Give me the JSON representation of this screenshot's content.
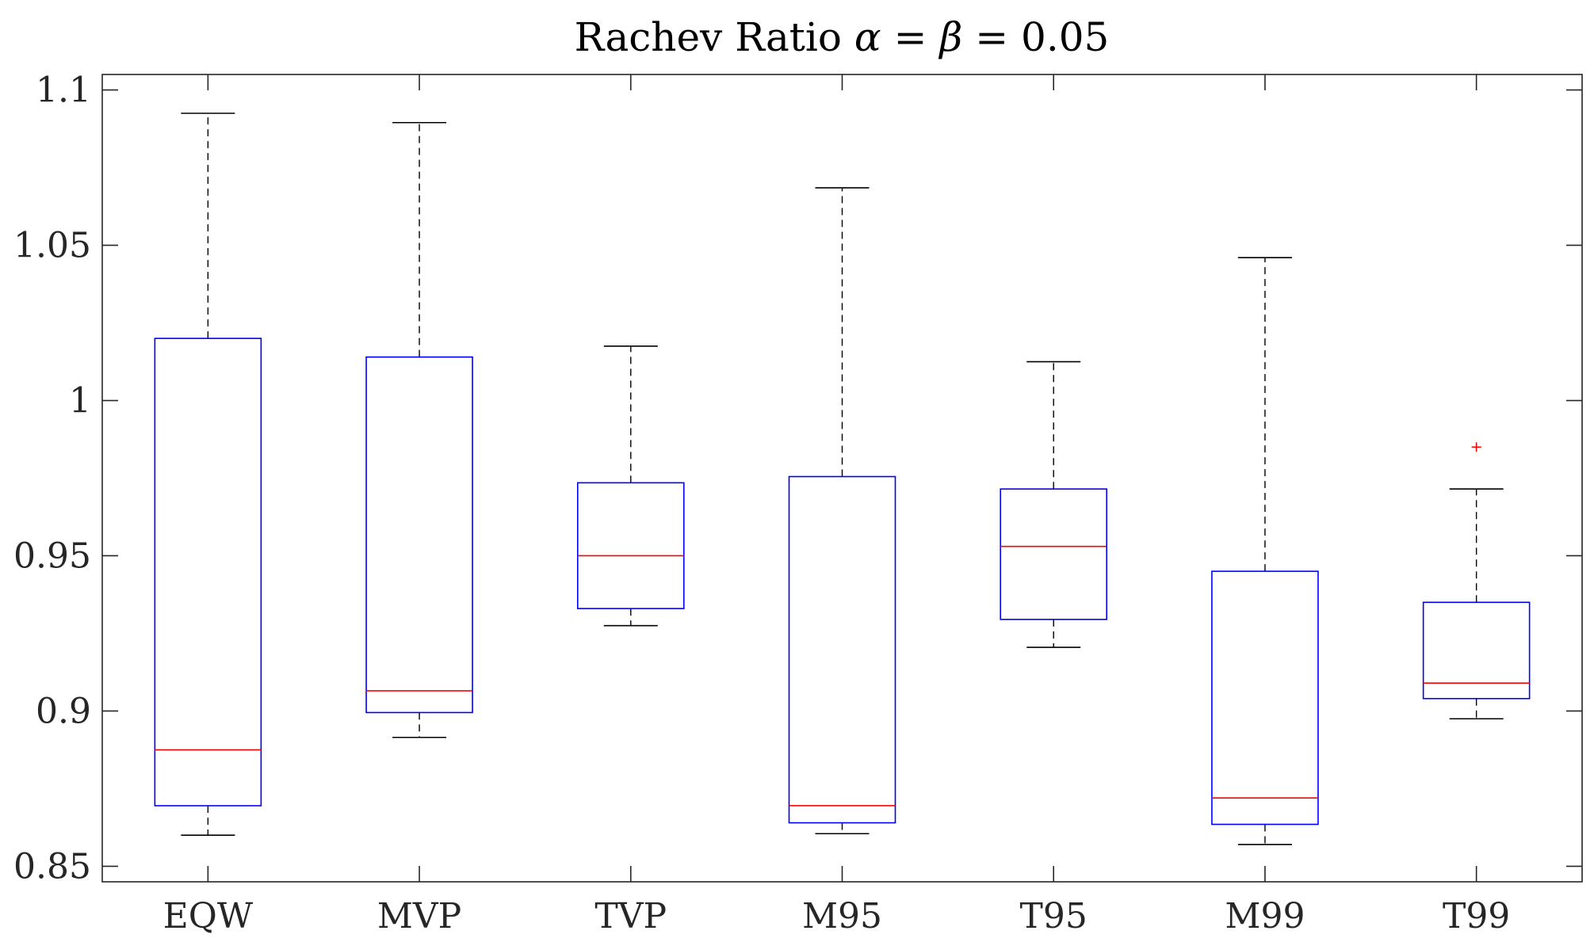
{
  "chart_data": {
    "type": "boxplot",
    "title": "Rachev Ratio",
    "title_math": "α = β = 0.05",
    "title_symbols": {
      "alpha": "α",
      "equals": "=",
      "beta": "β",
      "value": "0.05"
    },
    "xlabel": "",
    "ylabel": "",
    "ylim": [
      0.845,
      1.105
    ],
    "yticks": [
      0.85,
      0.9,
      0.95,
      1.0,
      1.05,
      1.1
    ],
    "ytick_labels": [
      "0.85",
      "0.9",
      "0.95",
      "1",
      "1.05",
      "1.1"
    ],
    "categories": [
      "EQW",
      "MVP",
      "TVP",
      "M95",
      "T95",
      "M99",
      "T99"
    ],
    "boxes": [
      {
        "label": "EQW",
        "whisker_low": 0.86,
        "q1": 0.8695,
        "median": 0.8875,
        "q3": 1.02,
        "whisker_high": 1.0925,
        "outliers": []
      },
      {
        "label": "MVP",
        "whisker_low": 0.8915,
        "q1": 0.8995,
        "median": 0.9065,
        "q3": 1.014,
        "whisker_high": 1.0895,
        "outliers": []
      },
      {
        "label": "TVP",
        "whisker_low": 0.9275,
        "q1": 0.933,
        "median": 0.95,
        "q3": 0.9735,
        "whisker_high": 1.0175,
        "outliers": []
      },
      {
        "label": "M95",
        "whisker_low": 0.8605,
        "q1": 0.864,
        "median": 0.8695,
        "q3": 0.9755,
        "whisker_high": 1.0685,
        "outliers": []
      },
      {
        "label": "T95",
        "whisker_low": 0.9205,
        "q1": 0.9295,
        "median": 0.953,
        "q3": 0.9715,
        "whisker_high": 1.0125,
        "outliers": []
      },
      {
        "label": "M99",
        "whisker_low": 0.857,
        "q1": 0.8635,
        "median": 0.872,
        "q3": 0.945,
        "whisker_high": 1.046,
        "outliers": []
      },
      {
        "label": "T99",
        "whisker_low": 0.8975,
        "q1": 0.904,
        "median": 0.909,
        "q3": 0.935,
        "whisker_high": 0.9715,
        "outliers": [
          0.985
        ]
      }
    ],
    "colors": {
      "box": "#0000ff",
      "median": "#ff0000",
      "whisker": "#000000",
      "outlier": "#ff0000",
      "axes": "#262626"
    }
  }
}
